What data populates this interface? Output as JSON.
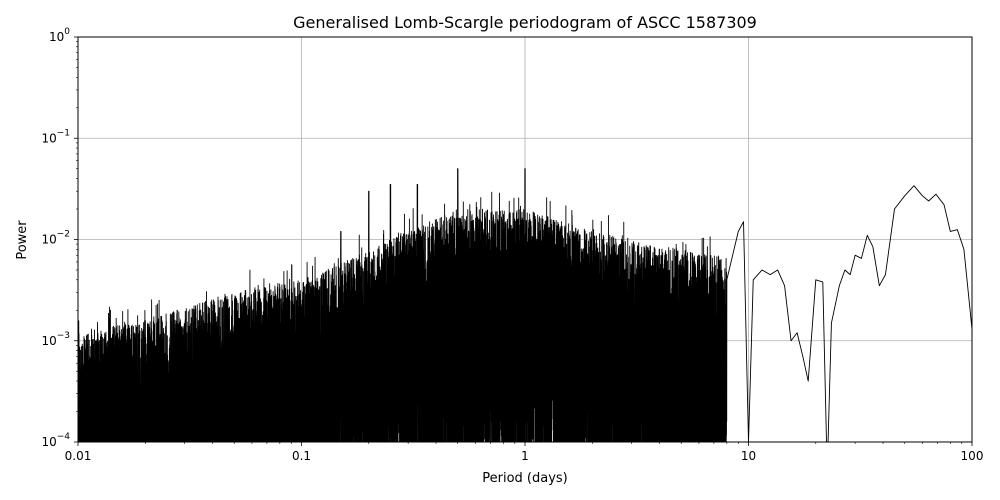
{
  "chart_data": {
    "type": "line",
    "title": "Generalised Lomb-Scargle periodogram of ASCC 1587309",
    "xlabel": "Period (days)",
    "ylabel": "Power",
    "xscale": "log",
    "yscale": "log",
    "xlim": [
      0.01,
      100
    ],
    "ylim": [
      0.0001,
      1
    ],
    "grid": true,
    "line_color": "#000000",
    "x_ticks": [
      {
        "value": 0.01,
        "label": "0.01"
      },
      {
        "value": 0.1,
        "label": "0.1"
      },
      {
        "value": 1,
        "label": "1"
      },
      {
        "value": 10,
        "label": "10"
      },
      {
        "value": 100,
        "label": "100"
      }
    ],
    "y_ticks": [
      {
        "value": 0.0001,
        "base": "10",
        "exp": "−4"
      },
      {
        "value": 0.001,
        "base": "10",
        "exp": "−3"
      },
      {
        "value": 0.01,
        "base": "10",
        "exp": "−2"
      },
      {
        "value": 0.1,
        "base": "10",
        "exp": "−1"
      },
      {
        "value": 1,
        "base": "10",
        "exp": "0"
      }
    ],
    "envelope": [
      {
        "period": 0.01,
        "power": 0.0012
      },
      {
        "period": 0.02,
        "power": 0.0016
      },
      {
        "period": 0.05,
        "power": 0.003
      },
      {
        "period": 0.1,
        "power": 0.004
      },
      {
        "period": 0.2,
        "power": 0.008
      },
      {
        "period": 0.3,
        "power": 0.012
      },
      {
        "period": 0.5,
        "power": 0.02
      },
      {
        "period": 1,
        "power": 0.02
      },
      {
        "period": 2,
        "power": 0.012
      },
      {
        "period": 5,
        "power": 0.008
      },
      {
        "period": 10,
        "power": 0.006
      }
    ],
    "peaks": [
      {
        "period": 0.5,
        "power": 0.05
      },
      {
        "period": 1.0,
        "power": 0.05
      },
      {
        "period": 0.25,
        "power": 0.035
      },
      {
        "period": 0.33,
        "power": 0.035
      },
      {
        "period": 0.2,
        "power": 0.03
      },
      {
        "period": 0.15,
        "power": 0.012
      },
      {
        "period": 9.5,
        "power": 0.015
      }
    ],
    "series": [
      {
        "x": [
          8.0,
          9.0,
          9.5,
          10.0,
          10.5,
          11.5,
          12.5,
          13.5,
          14.5,
          15.5,
          16.5,
          17.5,
          18.5,
          20.0,
          21.5,
          22.5,
          23.5,
          25.5,
          27.0,
          28.5,
          30.0,
          32.0,
          34.0,
          36.0,
          38.5,
          41.0,
          45.0,
          50.0,
          55.0,
          60.0,
          64.0,
          69.0,
          75.0,
          80.0,
          86.0,
          92.0,
          100.0
        ],
        "y": [
          0.004,
          0.012,
          0.015,
          0.0001,
          0.004,
          0.005,
          0.0045,
          0.005,
          0.0035,
          0.001,
          0.0012,
          0.0007,
          0.0004,
          0.004,
          0.0038,
          5e-05,
          0.0015,
          0.0035,
          0.005,
          0.0045,
          0.007,
          0.0065,
          0.011,
          0.0085,
          0.0035,
          0.0045,
          0.02,
          0.027,
          0.034,
          0.027,
          0.024,
          0.028,
          0.022,
          0.012,
          0.0125,
          0.008,
          0.0013
        ]
      }
    ]
  }
}
